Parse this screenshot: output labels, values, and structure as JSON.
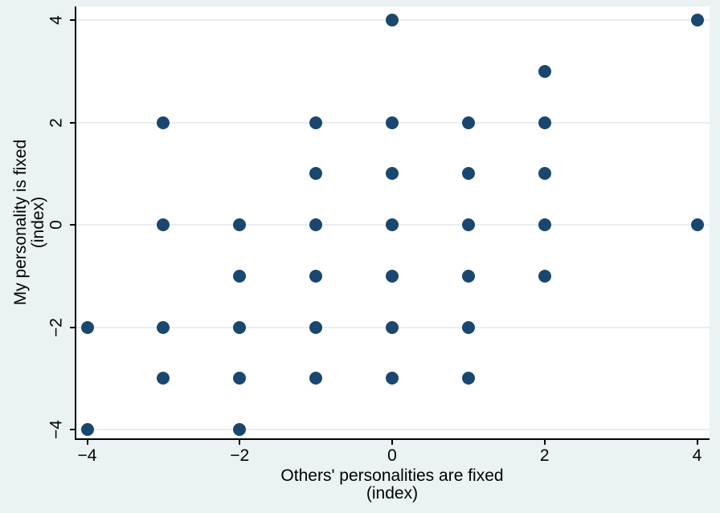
{
  "chart_data": {
    "type": "scatter",
    "title": "",
    "xlabel_lines": [
      "Others' personalities are fixed",
      "(index)"
    ],
    "ylabel_lines": [
      "My personality is fixed",
      "(index)"
    ],
    "xlim": [
      -4.15,
      4.17
    ],
    "ylim": [
      -4.18,
      4.27
    ],
    "xticks": [
      -4,
      -2,
      0,
      2,
      4
    ],
    "yticks": [
      -4,
      -2,
      0,
      2,
      4
    ],
    "xtick_labels": [
      "−4",
      "−2",
      "0",
      "2",
      "4"
    ],
    "ytick_labels": [
      "−4",
      "−2",
      "0",
      "2",
      "4"
    ],
    "grid": "horizontal-only",
    "legend": "none",
    "series": [
      {
        "name": "observations",
        "marker": "filled-circle",
        "color": "#1a476f",
        "points": [
          [
            0,
            4
          ],
          [
            4,
            4
          ],
          [
            2,
            3
          ],
          [
            -3,
            2
          ],
          [
            -1,
            2
          ],
          [
            0,
            2
          ],
          [
            1,
            2
          ],
          [
            2,
            2
          ],
          [
            -1,
            1
          ],
          [
            0,
            1
          ],
          [
            1,
            1
          ],
          [
            2,
            1
          ],
          [
            -3,
            0
          ],
          [
            -2,
            0
          ],
          [
            -1,
            0
          ],
          [
            0,
            0
          ],
          [
            1,
            0
          ],
          [
            2,
            0
          ],
          [
            4,
            0
          ],
          [
            -2,
            -1
          ],
          [
            -1,
            -1
          ],
          [
            0,
            -1
          ],
          [
            1,
            -1
          ],
          [
            2,
            -1
          ],
          [
            -4,
            -2
          ],
          [
            -3,
            -2
          ],
          [
            -2,
            -2
          ],
          [
            -1,
            -2
          ],
          [
            0,
            -2
          ],
          [
            1,
            -2
          ],
          [
            -3,
            -3
          ],
          [
            -2,
            -3
          ],
          [
            -1,
            -3
          ],
          [
            0,
            -3
          ],
          [
            1,
            -3
          ],
          [
            -4,
            -4
          ],
          [
            -2,
            -4
          ]
        ]
      }
    ],
    "colors": {
      "background": "#eaf2f3",
      "plot_background": "#ffffff",
      "gridline": "#e7eef3",
      "axis": "#000000",
      "text": "#000000"
    }
  }
}
